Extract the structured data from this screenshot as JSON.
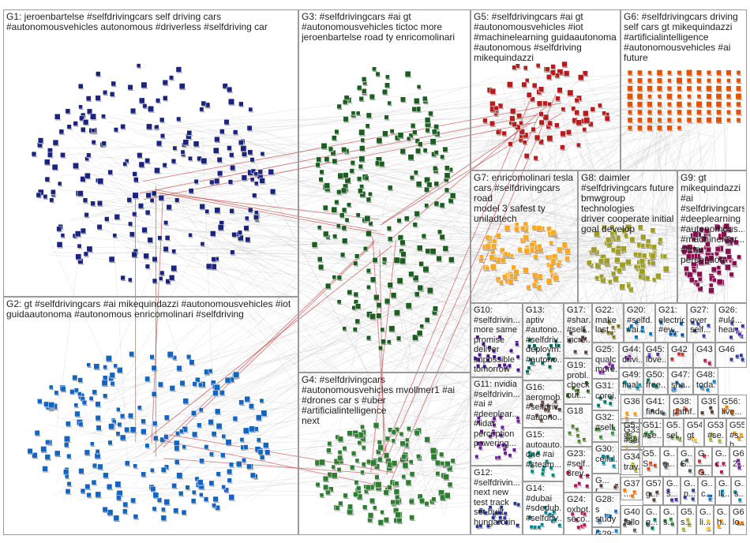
{
  "title": "",
  "groups": [
    {
      "id": "G1",
      "label": "G1: jeroenbartelse #selfdrivingcars self driving cars\n#autonomousvehicles autonomous #driverless #selfdriving car",
      "color": "#1a237e"
    },
    {
      "id": "G2",
      "label": "G2: gt #selfdrivingcars #ai mikequindazzi #autonomousvehicles #iot\nguidaautonoma #autonomous enricomolinari #selfdriving",
      "color": "#1565c0"
    },
    {
      "id": "G3",
      "label": "G3: #selfdrivingcars #ai gt\n#autonomousvehicles tictoc more\njeroenbartelse road ty enricomolinari",
      "color": "#1b5e20"
    },
    {
      "id": "G4",
      "label": "G4: #selfdrivingcars\n#autonomousvehicles mvollmer1 #ai\n#drones car s #uber #artificialintelligence\nnext",
      "color": "#2e7d32"
    },
    {
      "id": "G5",
      "label": "G5: #selfdrivingcars #ai gt\n#autonomousvehicles #iot\n#machinelearning guidaautonoma\n#autonomous #selfdriving\nmikequindazzi",
      "color": "#b71c1c"
    },
    {
      "id": "G6",
      "label": "G6: #selfdrivingcars driving\nself cars gt mikequindazzi\n#artificialintelligence\n#autonomousvehicles #ai\nfuture",
      "color": "#e65100"
    },
    {
      "id": "G7",
      "label": "G7: enricomolinari tesla\ncars #selfdrivingcars road\nmodel 3 safest ty\nuniladtech",
      "color": "#f9a825"
    },
    {
      "id": "G8",
      "label": "G8: daimler\n#selfdrivingcars future\nbmwgroup technologies\ndriver cooperate initial\ngoal develop",
      "color": "#9e9d24"
    },
    {
      "id": "G9",
      "label": "G9: gt\nmikequindazzi\n#ai\n#selfdrivingcars\n#deeplearning\n#autonomous...\n#machinelear...\n#lidar\nperception",
      "color": "#880e4f"
    },
    {
      "id": "G10",
      "label": "G10:\n#selfdrivin...\nmore same\npromise\ndeliver\nimpossible\ntomorrow\nreturn...",
      "color": "#4a148c"
    },
    {
      "id": "G11",
      "label": "G11: nvidia\n#selfdrivin...\n#ai #\n#deeplear...\n#lidar\nperception\npowering...",
      "color": "#6a1b9a"
    },
    {
      "id": "G12",
      "label": "G12:\n#selfdrivin...\nnext new\ntest track\nset built\nhungarorin...",
      "color": "#283593"
    },
    {
      "id": "G13",
      "label": "G13:\naptiv\n#autono...\n#selfdriv...\ndeploym...\n#autono...",
      "color": "#00695c"
    },
    {
      "id": "G14",
      "label": "G14:\n#dubai\n#sdedub...\n#selfdriv...",
      "color": "#00838f"
    },
    {
      "id": "G15",
      "label": "G15:\nautoauto...\none #ai\n#steam...",
      "color": "#00897b"
    },
    {
      "id": "G16",
      "label": "G16:\naeromob...\n#selfdriv...\n#autono...",
      "color": "#6d4c41"
    },
    {
      "id": "G17",
      "label": "G17:\n#shar...\n#self...\nincre...",
      "color": "#5d4037"
    },
    {
      "id": "G18",
      "label": "G18",
      "color": "#558b2f"
    },
    {
      "id": "G19",
      "label": "G19:\nprobl...\ncheck\nout...",
      "color": "#33691e"
    },
    {
      "id": "G20",
      "label": "G20:\n#selfd...\n#ai...",
      "color": "#0277bd"
    },
    {
      "id": "G21",
      "label": "G21:\nelectric\n#ev...",
      "color": "#01579b"
    },
    {
      "id": "G22",
      "label": "G22:\nmake\nlast...",
      "color": "#827717"
    },
    {
      "id": "G23",
      "label": "G23:\n#self...\n3rev...",
      "color": "#ad1457"
    },
    {
      "id": "G24",
      "label": "G24:\noxbot...\nseco...",
      "color": "#c2185b"
    },
    {
      "id": "G25",
      "label": "G25:\nqualc...\nmore...",
      "color": "#7b1fa2"
    },
    {
      "id": "G26",
      "label": "G26:\n#ul4...\nhear...",
      "color": "#512da8"
    },
    {
      "id": "G27",
      "label": "G27:\nover\nself...",
      "color": "#303f9f"
    },
    {
      "id": "G28",
      "label": "G28: s\nstudy\nprod...",
      "color": "#1976d2"
    },
    {
      "id": "G29",
      "label": "G29:\nolaca...",
      "color": "#0288d1"
    },
    {
      "id": "G30",
      "label": "G30:\ncellul...",
      "color": "#0097a7"
    },
    {
      "id": "G31",
      "label": "G31:\ncorei...",
      "color": "#00796b"
    },
    {
      "id": "G32",
      "label": "G32:\n#self...",
      "color": "#388e3c"
    },
    {
      "id": "G33",
      "label": "G33:\n#sel...",
      "color": "#689f38"
    },
    {
      "id": "G34",
      "label": "G34:\ntrav...",
      "color": "#afb42b"
    },
    {
      "id": "G35",
      "label": "G35:\nwo...",
      "color": "#fbc02d"
    },
    {
      "id": "G36",
      "label": "G36",
      "color": "#ffa000"
    },
    {
      "id": "G37",
      "label": "G37:\n...",
      "color": "#f57c00"
    },
    {
      "id": "G38",
      "label": "G38:\npathf...",
      "color": "#e64a19"
    },
    {
      "id": "G39",
      "label": "G39",
      "color": "#5d4037"
    },
    {
      "id": "G40",
      "label": "G40:\nfollo...",
      "color": "#616161"
    },
    {
      "id": "G41",
      "label": "G41:\nfind...",
      "color": "#455a64"
    },
    {
      "id": "G42",
      "label": "G42",
      "color": "#d32f2f"
    },
    {
      "id": "G43",
      "label": "G43",
      "color": "#c2185b"
    },
    {
      "id": "G44",
      "label": "G44:\ndrivi...",
      "color": "#7b1fa2"
    },
    {
      "id": "G45",
      "label": "G45:\nlove...",
      "color": "#512da8"
    },
    {
      "id": "G46",
      "label": "G46",
      "color": "#303f9f"
    },
    {
      "id": "G47",
      "label": "G47:\nsha...",
      "color": "#1976d2"
    },
    {
      "id": "G48",
      "label": "G48:\ntoda...",
      "color": "#0288d1"
    },
    {
      "id": "G49",
      "label": "G49:\nfinal...",
      "color": "#0097a7"
    },
    {
      "id": "G50",
      "label": "G50:\nfree...",
      "color": "#00796b"
    },
    {
      "id": "G51",
      "label": "G51:\n#se...",
      "color": "#388e3c"
    },
    {
      "id": "G52",
      "label": "G5...\n#s...",
      "color": "#689f38"
    },
    {
      "id": "G53",
      "label": "G53:\n#se...",
      "color": "#afb42b"
    },
    {
      "id": "G54",
      "label": "G54:\ngt",
      "color": "#fbc02d"
    },
    {
      "id": "G55",
      "label": "G55:\n#s...\nh",
      "color": "#ffa000"
    },
    {
      "id": "G56",
      "label": "G56:\nlive...",
      "color": "#f57c00"
    },
    {
      "id": "G57",
      "label": "G5...\nS...",
      "color": "#e64a19"
    },
    {
      "id": "G57b",
      "label": "G57:\ng...",
      "color": "#5d4037"
    },
    {
      "id": "G58",
      "label": "G...\ns...",
      "color": "#616161"
    },
    {
      "id": "G59",
      "label": "G...\nS...",
      "color": "#455a64"
    },
    {
      "id": "G60",
      "label": "G...",
      "color": "#d32f2f"
    },
    {
      "id": "G61",
      "label": "G...\nc...",
      "color": "#c2185b"
    },
    {
      "id": "G62",
      "label": "G6...\n2...",
      "color": "#7b1fa2"
    },
    {
      "id": "G63",
      "label": "G...\ns...",
      "color": "#512da8"
    },
    {
      "id": "G64",
      "label": "G...\nn...",
      "color": "#303f9f"
    },
    {
      "id": "G65",
      "label": "G...\nc...",
      "color": "#1976d2"
    },
    {
      "id": "G66",
      "label": "G...\nli...",
      "color": "#0288d1"
    },
    {
      "id": "G67",
      "label": "G...\ns...",
      "color": "#0097a7"
    },
    {
      "id": "G68",
      "label": "G...\ng...",
      "color": "#00796b"
    },
    {
      "id": "G69",
      "label": "G...\ns...",
      "color": "#388e3c"
    },
    {
      "id": "G70",
      "label": "G5...\nsel...",
      "color": "#689f38"
    },
    {
      "id": "G71",
      "label": "G5...\ns...",
      "color": "#afb42b"
    },
    {
      "id": "G72",
      "label": "G...\nli...",
      "color": "#fbc02d"
    },
    {
      "id": "G73",
      "label": "G...\nh...",
      "color": "#ffa000"
    },
    {
      "id": "G74",
      "label": "G6...\nlo...",
      "color": "#f57c00"
    },
    {
      "id": "G75",
      "label": "G...\nh...",
      "color": "#e64a19"
    },
    {
      "id": "G76",
      "label": "G...\nr...",
      "color": "#5d4037"
    },
    {
      "id": "G77",
      "label": "G...\nn...",
      "color": "#616161"
    },
    {
      "id": "G78",
      "label": "G...\nn...",
      "color": "#455a64"
    },
    {
      "id": "G79",
      "label": "G...\nn...",
      "color": "#d32f2f"
    }
  ]
}
